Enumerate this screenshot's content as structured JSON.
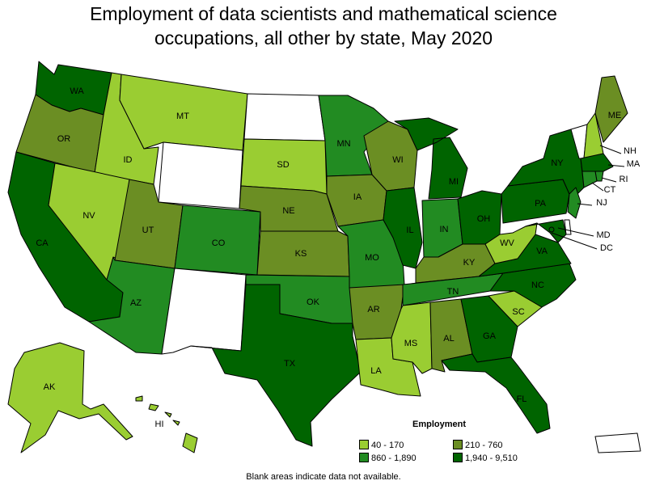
{
  "title_line1": "Employment of data scientists and mathematical science",
  "title_line2": "occupations, all other by state, May 2020",
  "legend": {
    "title": "Employment",
    "items": [
      {
        "label": "40 - 170",
        "color": "#9acd32"
      },
      {
        "label": "210 - 760",
        "color": "#6b8e23"
      },
      {
        "label": "860 - 1,890",
        "color": "#228b22"
      },
      {
        "label": "1,940 - 9,510",
        "color": "#006400"
      }
    ]
  },
  "footnote": "Blank areas indicate data not available.",
  "colors": {
    "bin1": "#9acd32",
    "bin2": "#6b8e23",
    "bin3": "#228b22",
    "bin4": "#006400",
    "na": "#ffffff"
  },
  "chart_data": {
    "type": "choropleth",
    "bins": [
      "40 - 170",
      "210 - 760",
      "860 - 1,890",
      "1,940 - 9,510"
    ],
    "states": [
      {
        "abbr": "WA",
        "bin": 4
      },
      {
        "abbr": "OR",
        "bin": 2
      },
      {
        "abbr": "CA",
        "bin": 4
      },
      {
        "abbr": "ID",
        "bin": 1
      },
      {
        "abbr": "NV",
        "bin": 1
      },
      {
        "abbr": "MT",
        "bin": 1
      },
      {
        "abbr": "WY",
        "bin": 0
      },
      {
        "abbr": "UT",
        "bin": 2
      },
      {
        "abbr": "AZ",
        "bin": 3
      },
      {
        "abbr": "CO",
        "bin": 3
      },
      {
        "abbr": "NM",
        "bin": 0
      },
      {
        "abbr": "ND",
        "bin": 0
      },
      {
        "abbr": "SD",
        "bin": 1
      },
      {
        "abbr": "NE",
        "bin": 2
      },
      {
        "abbr": "KS",
        "bin": 2
      },
      {
        "abbr": "OK",
        "bin": 3
      },
      {
        "abbr": "TX",
        "bin": 4
      },
      {
        "abbr": "MN",
        "bin": 3
      },
      {
        "abbr": "IA",
        "bin": 2
      },
      {
        "abbr": "MO",
        "bin": 3
      },
      {
        "abbr": "AR",
        "bin": 2
      },
      {
        "abbr": "LA",
        "bin": 1
      },
      {
        "abbr": "WI",
        "bin": 2
      },
      {
        "abbr": "IL",
        "bin": 4
      },
      {
        "abbr": "MI",
        "bin": 4
      },
      {
        "abbr": "IN",
        "bin": 3
      },
      {
        "abbr": "OH",
        "bin": 4
      },
      {
        "abbr": "KY",
        "bin": 2
      },
      {
        "abbr": "TN",
        "bin": 3
      },
      {
        "abbr": "MS",
        "bin": 1
      },
      {
        "abbr": "AL",
        "bin": 2
      },
      {
        "abbr": "GA",
        "bin": 4
      },
      {
        "abbr": "FL",
        "bin": 4
      },
      {
        "abbr": "SC",
        "bin": 1
      },
      {
        "abbr": "NC",
        "bin": 4
      },
      {
        "abbr": "VA",
        "bin": 4
      },
      {
        "abbr": "WV",
        "bin": 1
      },
      {
        "abbr": "PA",
        "bin": 4
      },
      {
        "abbr": "NY",
        "bin": 4
      },
      {
        "abbr": "VT",
        "bin": 0
      },
      {
        "abbr": "NH",
        "bin": 1
      },
      {
        "abbr": "ME",
        "bin": 2
      },
      {
        "abbr": "MA",
        "bin": 4
      },
      {
        "abbr": "RI",
        "bin": 3
      },
      {
        "abbr": "CT",
        "bin": 3
      },
      {
        "abbr": "NJ",
        "bin": 3
      },
      {
        "abbr": "DE",
        "bin": 0
      },
      {
        "abbr": "MD",
        "bin": 4
      },
      {
        "abbr": "DC",
        "bin": 4
      },
      {
        "abbr": "AK",
        "bin": 1
      },
      {
        "abbr": "HI",
        "bin": 1
      },
      {
        "abbr": "PR",
        "bin": 0
      }
    ]
  }
}
